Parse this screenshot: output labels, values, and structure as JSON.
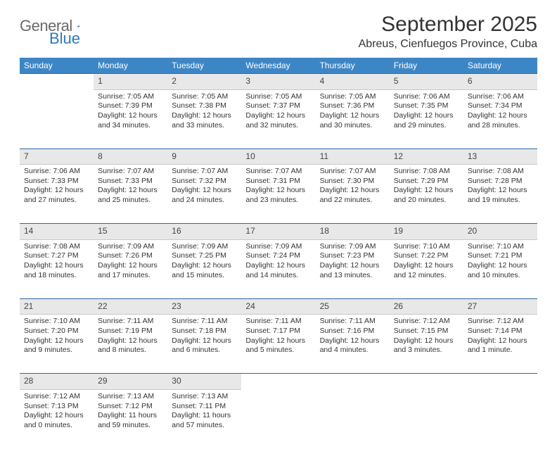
{
  "brand": {
    "main": "General",
    "sub": "Blue"
  },
  "title": "September 2025",
  "location": "Abreus, Cienfuegos Province, Cuba",
  "colors": {
    "header_bg": "#3d86c6",
    "header_text": "#ffffff",
    "daynum_bg": "#e8e8e8",
    "rule": "#2b6aa3",
    "brand_sub": "#2b7bbf",
    "brand_main": "#6a6a6a"
  },
  "weekdays": [
    "Sunday",
    "Monday",
    "Tuesday",
    "Wednesday",
    "Thursday",
    "Friday",
    "Saturday"
  ],
  "weeks": [
    [
      null,
      {
        "n": "1",
        "sr": "7:05 AM",
        "ss": "7:39 PM",
        "dl": "12 hours and 34 minutes."
      },
      {
        "n": "2",
        "sr": "7:05 AM",
        "ss": "7:38 PM",
        "dl": "12 hours and 33 minutes."
      },
      {
        "n": "3",
        "sr": "7:05 AM",
        "ss": "7:37 PM",
        "dl": "12 hours and 32 minutes."
      },
      {
        "n": "4",
        "sr": "7:05 AM",
        "ss": "7:36 PM",
        "dl": "12 hours and 30 minutes."
      },
      {
        "n": "5",
        "sr": "7:06 AM",
        "ss": "7:35 PM",
        "dl": "12 hours and 29 minutes."
      },
      {
        "n": "6",
        "sr": "7:06 AM",
        "ss": "7:34 PM",
        "dl": "12 hours and 28 minutes."
      }
    ],
    [
      {
        "n": "7",
        "sr": "7:06 AM",
        "ss": "7:33 PM",
        "dl": "12 hours and 27 minutes."
      },
      {
        "n": "8",
        "sr": "7:07 AM",
        "ss": "7:33 PM",
        "dl": "12 hours and 25 minutes."
      },
      {
        "n": "9",
        "sr": "7:07 AM",
        "ss": "7:32 PM",
        "dl": "12 hours and 24 minutes."
      },
      {
        "n": "10",
        "sr": "7:07 AM",
        "ss": "7:31 PM",
        "dl": "12 hours and 23 minutes."
      },
      {
        "n": "11",
        "sr": "7:07 AM",
        "ss": "7:30 PM",
        "dl": "12 hours and 22 minutes."
      },
      {
        "n": "12",
        "sr": "7:08 AM",
        "ss": "7:29 PM",
        "dl": "12 hours and 20 minutes."
      },
      {
        "n": "13",
        "sr": "7:08 AM",
        "ss": "7:28 PM",
        "dl": "12 hours and 19 minutes."
      }
    ],
    [
      {
        "n": "14",
        "sr": "7:08 AM",
        "ss": "7:27 PM",
        "dl": "12 hours and 18 minutes."
      },
      {
        "n": "15",
        "sr": "7:09 AM",
        "ss": "7:26 PM",
        "dl": "12 hours and 17 minutes."
      },
      {
        "n": "16",
        "sr": "7:09 AM",
        "ss": "7:25 PM",
        "dl": "12 hours and 15 minutes."
      },
      {
        "n": "17",
        "sr": "7:09 AM",
        "ss": "7:24 PM",
        "dl": "12 hours and 14 minutes."
      },
      {
        "n": "18",
        "sr": "7:09 AM",
        "ss": "7:23 PM",
        "dl": "12 hours and 13 minutes."
      },
      {
        "n": "19",
        "sr": "7:10 AM",
        "ss": "7:22 PM",
        "dl": "12 hours and 12 minutes."
      },
      {
        "n": "20",
        "sr": "7:10 AM",
        "ss": "7:21 PM",
        "dl": "12 hours and 10 minutes."
      }
    ],
    [
      {
        "n": "21",
        "sr": "7:10 AM",
        "ss": "7:20 PM",
        "dl": "12 hours and 9 minutes."
      },
      {
        "n": "22",
        "sr": "7:11 AM",
        "ss": "7:19 PM",
        "dl": "12 hours and 8 minutes."
      },
      {
        "n": "23",
        "sr": "7:11 AM",
        "ss": "7:18 PM",
        "dl": "12 hours and 6 minutes."
      },
      {
        "n": "24",
        "sr": "7:11 AM",
        "ss": "7:17 PM",
        "dl": "12 hours and 5 minutes."
      },
      {
        "n": "25",
        "sr": "7:11 AM",
        "ss": "7:16 PM",
        "dl": "12 hours and 4 minutes."
      },
      {
        "n": "26",
        "sr": "7:12 AM",
        "ss": "7:15 PM",
        "dl": "12 hours and 3 minutes."
      },
      {
        "n": "27",
        "sr": "7:12 AM",
        "ss": "7:14 PM",
        "dl": "12 hours and 1 minute."
      }
    ],
    [
      {
        "n": "28",
        "sr": "7:12 AM",
        "ss": "7:13 PM",
        "dl": "12 hours and 0 minutes."
      },
      {
        "n": "29",
        "sr": "7:13 AM",
        "ss": "7:12 PM",
        "dl": "11 hours and 59 minutes."
      },
      {
        "n": "30",
        "sr": "7:13 AM",
        "ss": "7:11 PM",
        "dl": "11 hours and 57 minutes."
      },
      null,
      null,
      null,
      null
    ]
  ],
  "labels": {
    "sunrise": "Sunrise:",
    "sunset": "Sunset:",
    "daylight": "Daylight:"
  }
}
